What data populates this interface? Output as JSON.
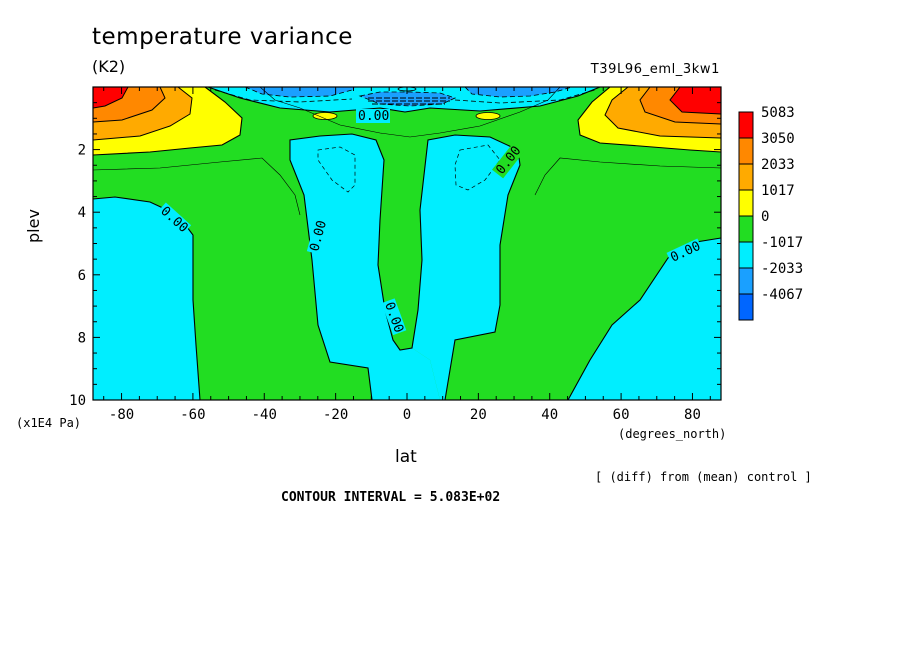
{
  "title": "temperature variance",
  "units": "(K2)",
  "experiment": "T39L96_eml_3kw1",
  "note": "[ (diff) from (mean) control ]",
  "contour_interval_text": "CONTOUR INTERVAL = 5.083E+02",
  "colors": {
    "c_neg4067": "#0066ff",
    "c_neg2033": "#1aa0ff",
    "c_neg1017": "#00eeff",
    "c_0": "#22dd22",
    "c_1017": "#ffff00",
    "c_2033": "#ffaa00",
    "c_3050": "#ff8800",
    "c_5083": "#ff0000"
  },
  "chart_data": {
    "type": "heatmap",
    "xlabel": "lat",
    "xunits": "(degrees_north)",
    "ylabel": "plev",
    "yunits": "(x1E4 Pa)",
    "xlim": [
      -88,
      88
    ],
    "ylim": [
      0,
      10
    ],
    "y_inverted": true,
    "xticks": [
      "-80",
      "-60",
      "-40",
      "-20",
      "0",
      "20",
      "40",
      "60",
      "80"
    ],
    "xtick_values": [
      -80,
      -60,
      -40,
      -20,
      0,
      20,
      40,
      60,
      80
    ],
    "yticks": [
      "2",
      "4",
      "6",
      "8",
      "10"
    ],
    "ytick_values": [
      2,
      4,
      6,
      8,
      10
    ],
    "contour_interval": 508.3,
    "contour_labels": [
      "0.00",
      "0.00",
      "0.00",
      "0.00",
      "0.00",
      "0.00",
      "0.00"
    ],
    "legend": {
      "placement": "right",
      "labels": [
        "5083",
        "3050",
        "2033",
        "1017",
        "0",
        "-1017",
        "-2033",
        "-4067"
      ],
      "colors": [
        "#ff0000",
        "#ff8800",
        "#ffaa00",
        "#ffff00",
        "#22dd22",
        "#00eeff",
        "#1aa0ff",
        "#0066ff"
      ]
    }
  }
}
